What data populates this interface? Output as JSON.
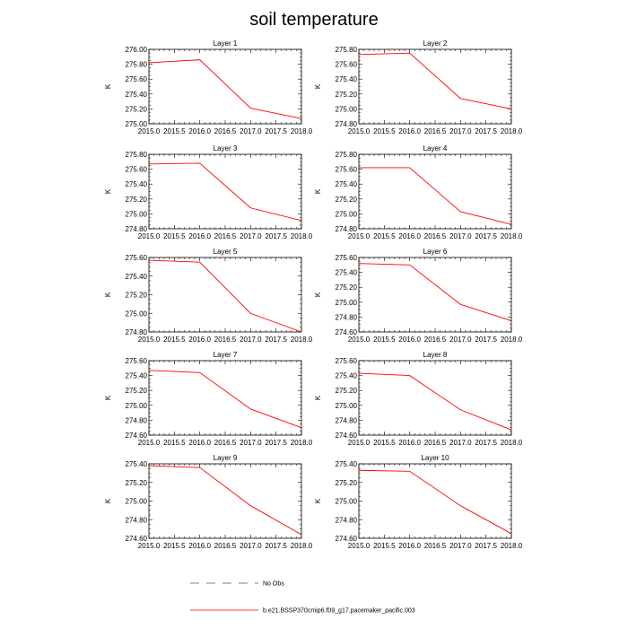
{
  "title": "soil temperature",
  "chart_data": [
    {
      "type": "line",
      "title": "Layer 1",
      "ylabel": "K",
      "x": [
        2015.0,
        2016.0,
        2017.0,
        2018.0
      ],
      "xlim": [
        2015.0,
        2018.0
      ],
      "ylim": [
        275.0,
        276.0
      ],
      "yticks": [
        "275.00",
        "275.20",
        "275.40",
        "275.60",
        "275.80",
        "276.00"
      ],
      "xticks": [
        "2015.0",
        "2015.5",
        "2016.0",
        "2016.5",
        "2017.0",
        "2017.5",
        "2018.0"
      ],
      "series": [
        {
          "name": "b.e21.BSSP370cmip6.f09_g17.pacemaker_pacific.003",
          "color": "#ff0000",
          "values": [
            275.82,
            275.86,
            275.21,
            275.07
          ]
        }
      ]
    },
    {
      "type": "line",
      "title": "Layer 2",
      "ylabel": "K",
      "x": [
        2015.0,
        2016.0,
        2017.0,
        2018.0
      ],
      "xlim": [
        2015.0,
        2018.0
      ],
      "ylim": [
        274.8,
        275.8
      ],
      "yticks": [
        "274.80",
        "275.00",
        "275.20",
        "275.40",
        "275.60",
        "275.80"
      ],
      "xticks": [
        "2015.0",
        "2015.5",
        "2016.0",
        "2016.5",
        "2017.0",
        "2017.5",
        "2018.0"
      ],
      "series": [
        {
          "name": "b.e21.BSSP370cmip6.f09_g17.pacemaker_pacific.003",
          "color": "#ff0000",
          "values": [
            275.73,
            275.75,
            275.14,
            275.0
          ]
        }
      ]
    },
    {
      "type": "line",
      "title": "Layer 3",
      "ylabel": "K",
      "x": [
        2015.0,
        2016.0,
        2017.0,
        2018.0
      ],
      "xlim": [
        2015.0,
        2018.0
      ],
      "ylim": [
        274.8,
        275.8
      ],
      "yticks": [
        "274.80",
        "275.00",
        "275.20",
        "275.40",
        "275.60",
        "275.80"
      ],
      "xticks": [
        "2015.0",
        "2015.5",
        "2016.0",
        "2016.5",
        "2017.0",
        "2017.5",
        "2018.0"
      ],
      "series": [
        {
          "name": "b.e21.BSSP370cmip6.f09_g17.pacemaker_pacific.003",
          "color": "#ff0000",
          "values": [
            275.67,
            275.68,
            275.08,
            274.91
          ]
        }
      ]
    },
    {
      "type": "line",
      "title": "Layer 4",
      "ylabel": "K",
      "x": [
        2015.0,
        2016.0,
        2017.0,
        2018.0
      ],
      "xlim": [
        2015.0,
        2018.0
      ],
      "ylim": [
        274.8,
        275.8
      ],
      "yticks": [
        "274.80",
        "275.00",
        "275.20",
        "275.40",
        "275.60",
        "275.80"
      ],
      "xticks": [
        "2015.0",
        "2015.5",
        "2016.0",
        "2016.5",
        "2017.0",
        "2017.5",
        "2018.0"
      ],
      "series": [
        {
          "name": "b.e21.BSSP370cmip6.f09_g17.pacemaker_pacific.003",
          "color": "#ff0000",
          "values": [
            275.62,
            275.62,
            275.03,
            274.86
          ]
        }
      ]
    },
    {
      "type": "line",
      "title": "Layer 5",
      "ylabel": "K",
      "x": [
        2015.0,
        2016.0,
        2017.0,
        2018.0
      ],
      "xlim": [
        2015.0,
        2018.0
      ],
      "ylim": [
        274.8,
        275.6
      ],
      "yticks": [
        "274.80",
        "275.00",
        "275.20",
        "275.40",
        "275.60"
      ],
      "xticks": [
        "2015.0",
        "2015.5",
        "2016.0",
        "2016.5",
        "2017.0",
        "2017.5",
        "2018.0"
      ],
      "series": [
        {
          "name": "b.e21.BSSP370cmip6.f09_g17.pacemaker_pacific.003",
          "color": "#ff0000",
          "values": [
            275.57,
            275.55,
            275.0,
            274.8
          ]
        }
      ]
    },
    {
      "type": "line",
      "title": "Layer 6",
      "ylabel": "K",
      "x": [
        2015.0,
        2016.0,
        2017.0,
        2018.0
      ],
      "xlim": [
        2015.0,
        2018.0
      ],
      "ylim": [
        274.6,
        275.6
      ],
      "yticks": [
        "274.60",
        "274.80",
        "275.00",
        "275.20",
        "275.40",
        "275.60"
      ],
      "xticks": [
        "2015.0",
        "2015.5",
        "2016.0",
        "2016.5",
        "2017.0",
        "2017.5",
        "2018.0"
      ],
      "series": [
        {
          "name": "b.e21.BSSP370cmip6.f09_g17.pacemaker_pacific.003",
          "color": "#ff0000",
          "values": [
            275.52,
            275.5,
            274.97,
            274.75
          ]
        }
      ]
    },
    {
      "type": "line",
      "title": "Layer 7",
      "ylabel": "K",
      "x": [
        2015.0,
        2016.0,
        2017.0,
        2018.0
      ],
      "xlim": [
        2015.0,
        2018.0
      ],
      "ylim": [
        274.6,
        275.6
      ],
      "yticks": [
        "274.60",
        "274.80",
        "275.00",
        "275.20",
        "275.40",
        "275.60"
      ],
      "xticks": [
        "2015.0",
        "2015.5",
        "2016.0",
        "2016.5",
        "2017.0",
        "2017.5",
        "2018.0"
      ],
      "series": [
        {
          "name": "b.e21.BSSP370cmip6.f09_g17.pacemaker_pacific.003",
          "color": "#ff0000",
          "values": [
            275.47,
            275.44,
            274.95,
            274.7
          ]
        }
      ]
    },
    {
      "type": "line",
      "title": "Layer 8",
      "ylabel": "K",
      "x": [
        2015.0,
        2016.0,
        2017.0,
        2018.0
      ],
      "xlim": [
        2015.0,
        2018.0
      ],
      "ylim": [
        274.6,
        275.6
      ],
      "yticks": [
        "274.60",
        "274.80",
        "275.00",
        "275.20",
        "275.40",
        "275.60"
      ],
      "xticks": [
        "2015.0",
        "2015.5",
        "2016.0",
        "2016.5",
        "2017.0",
        "2017.5",
        "2018.0"
      ],
      "series": [
        {
          "name": "b.e21.BSSP370cmip6.f09_g17.pacemaker_pacific.003",
          "color": "#ff0000",
          "values": [
            275.43,
            275.4,
            274.94,
            274.67
          ]
        }
      ]
    },
    {
      "type": "line",
      "title": "Layer 9",
      "ylabel": "K",
      "x": [
        2015.0,
        2016.0,
        2017.0,
        2018.0
      ],
      "xlim": [
        2015.0,
        2018.0
      ],
      "ylim": [
        274.6,
        275.4
      ],
      "yticks": [
        "274.60",
        "274.80",
        "275.00",
        "275.20",
        "275.40"
      ],
      "xticks": [
        "2015.0",
        "2015.5",
        "2016.0",
        "2016.5",
        "2017.0",
        "2017.5",
        "2018.0"
      ],
      "series": [
        {
          "name": "b.e21.BSSP370cmip6.f09_g17.pacemaker_pacific.003",
          "color": "#ff0000",
          "values": [
            275.38,
            275.36,
            274.95,
            274.64
          ]
        }
      ]
    },
    {
      "type": "line",
      "title": "Layer 10",
      "ylabel": "K",
      "x": [
        2015.0,
        2016.0,
        2017.0,
        2018.0
      ],
      "xlim": [
        2015.0,
        2018.0
      ],
      "ylim": [
        274.6,
        275.4
      ],
      "yticks": [
        "274.60",
        "274.80",
        "275.00",
        "275.20",
        "275.40"
      ],
      "xticks": [
        "2015.0",
        "2015.5",
        "2016.0",
        "2016.5",
        "2017.0",
        "2017.5",
        "2018.0"
      ],
      "series": [
        {
          "name": "b.e21.BSSP370cmip6.f09_g17.pacemaker_pacific.003",
          "color": "#ff0000",
          "values": [
            275.33,
            275.32,
            274.95,
            274.65
          ]
        }
      ]
    }
  ],
  "legend": {
    "items": [
      {
        "label": "No Obs",
        "color": "#5050a0",
        "style": "dashed"
      },
      {
        "label": "b.e21.BSSP370cmip6.f09_g17.pacemaker_pacific.003",
        "color": "#ff0000",
        "style": "solid"
      }
    ]
  }
}
